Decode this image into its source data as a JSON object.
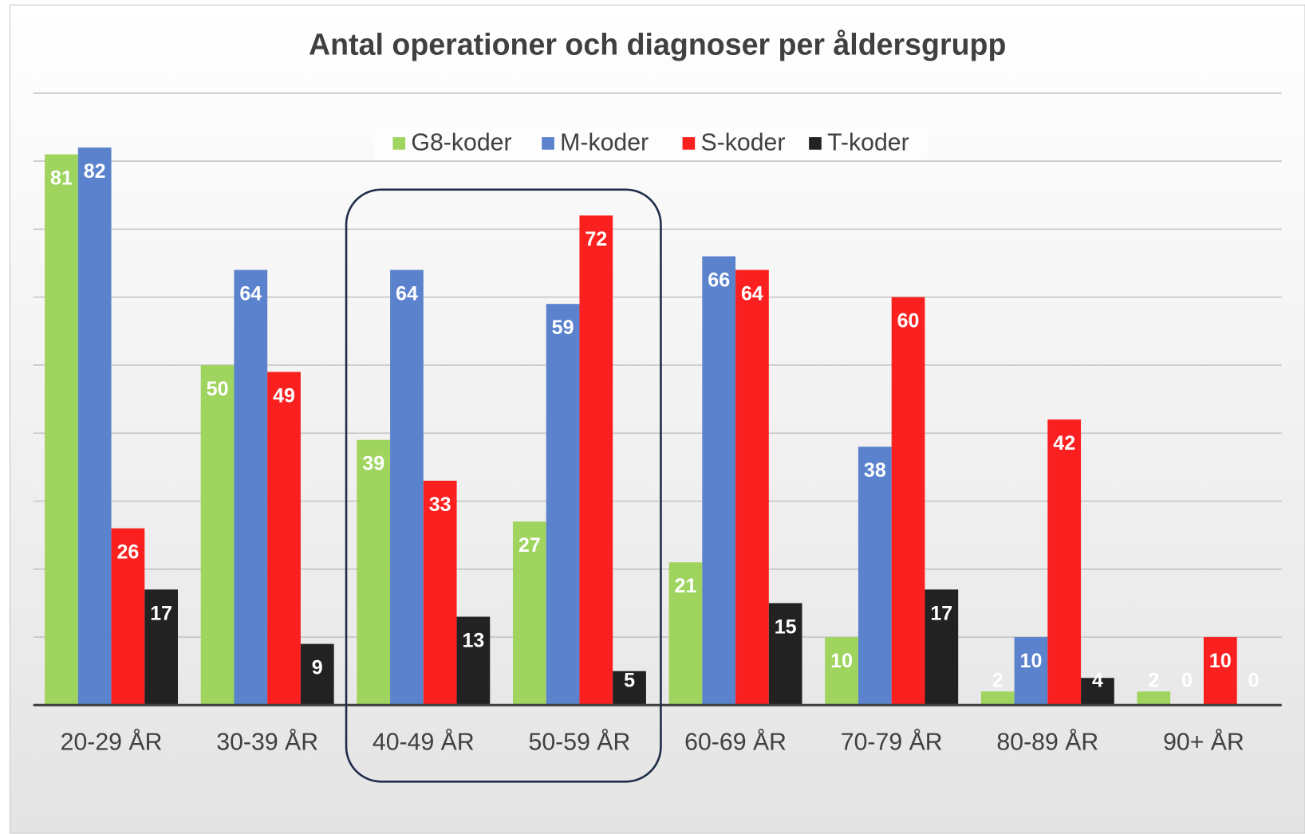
{
  "chart_data": {
    "type": "bar",
    "title": "Antal operationer och diagnoser per åldersgrupp",
    "categories": [
      "20-29 ÅR",
      "30-39 ÅR",
      "40-49 ÅR",
      "50-59 ÅR",
      "60-69 ÅR",
      "70-79 ÅR",
      "80-89 ÅR",
      "90+ ÅR"
    ],
    "series": [
      {
        "name": "G8-koder",
        "color": "#9fd45f",
        "values": [
          81,
          50,
          39,
          27,
          21,
          10,
          2,
          2
        ]
      },
      {
        "name": "M-koder",
        "color": "#5b82cc",
        "values": [
          82,
          64,
          64,
          59,
          66,
          38,
          10,
          0
        ]
      },
      {
        "name": "S-koder",
        "color": "#fb2020",
        "values": [
          26,
          49,
          33,
          72,
          64,
          60,
          42,
          10
        ]
      },
      {
        "name": "T-koder",
        "color": "#222222",
        "values": [
          17,
          9,
          13,
          5,
          15,
          17,
          4,
          0
        ]
      }
    ],
    "ylim": [
      0,
      90
    ],
    "yticks": [
      0,
      10,
      20,
      30,
      40,
      50,
      60,
      70,
      80,
      90
    ],
    "grid": true,
    "legend": "top"
  }
}
